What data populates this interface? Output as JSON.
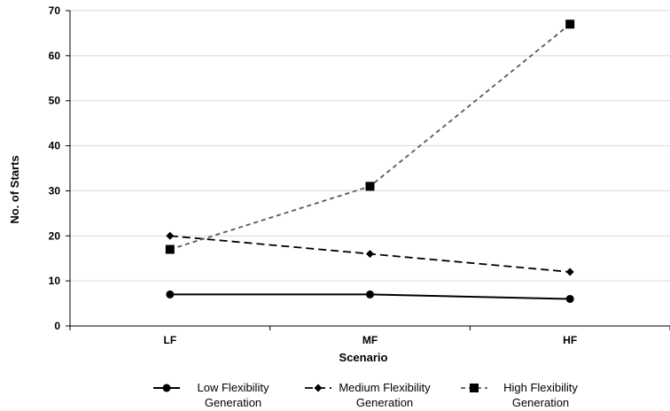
{
  "chart_data": {
    "type": "line",
    "title": "",
    "xlabel": "Scenario",
    "ylabel": "No. of Starts",
    "categories": [
      "LF",
      "MF",
      "HF"
    ],
    "ylim": [
      0,
      70
    ],
    "yticks": [
      0,
      10,
      20,
      30,
      40,
      50,
      60,
      70
    ],
    "grid": "horizontal",
    "legend_position": "bottom",
    "series": [
      {
        "name": "Low Flexibility Generation",
        "legend_lines": [
          "Low Flexibility",
          "Generation"
        ],
        "values": [
          7,
          7,
          6
        ],
        "marker": "circle",
        "line_style": "solid",
        "color": "#000000"
      },
      {
        "name": "Medium Flexibility Generation",
        "legend_lines": [
          "Medium Flexibility",
          "Generation"
        ],
        "values": [
          20,
          16,
          12
        ],
        "marker": "diamond",
        "line_style": "dashed",
        "color": "#000000"
      },
      {
        "name": "High Flexibility Generation",
        "legend_lines": [
          "High Flexibility",
          "Generation"
        ],
        "values": [
          17,
          31,
          67
        ],
        "marker": "square",
        "line_style": "dashed-gray",
        "color": "#595959"
      }
    ]
  }
}
